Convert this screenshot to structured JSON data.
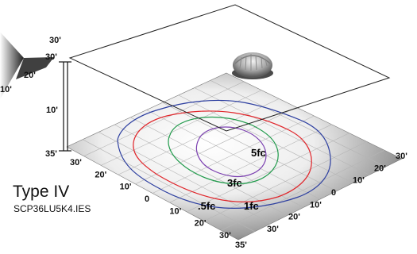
{
  "title": "Type IV",
  "file_name": "SCP36LU5K4.IES",
  "mounting_height_label": "10'",
  "left_axis_labels": [
    "30'",
    "20'",
    "10'",
    "0",
    "10'",
    "20'",
    "30'"
  ],
  "left_axis_start": "35'",
  "left_axis_end": "35'",
  "right_axis_labels": [
    "30'",
    "20'",
    "10'",
    "0",
    "10'",
    "20'",
    "30'"
  ],
  "back_panel_labels": {
    "top": "30'",
    "mid": "20'",
    "low": "10'"
  },
  "corner_labels": {
    "upper": "30'",
    "lower": "35'"
  },
  "contours": [
    {
      "label": "5fc",
      "color": "#7b3fb0"
    },
    {
      "label": "3fc",
      "color": "#1f9a4a"
    },
    {
      "label": "1fc",
      "color": "#e0262b"
    },
    {
      "label": ".5fc",
      "color": "#2d3fa0"
    }
  ],
  "fixture_icon": "area-light-fixture-icon"
}
